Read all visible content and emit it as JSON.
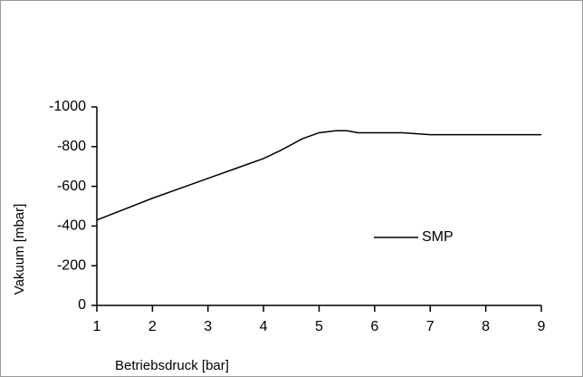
{
  "chart_data": {
    "type": "line",
    "x_label": "Betriebsdruck [bar]",
    "y_label": "Vakuum [mbar]",
    "x": [
      1,
      1.5,
      2,
      2.5,
      3,
      3.5,
      4,
      4.3,
      4.7,
      5,
      5.3,
      5.5,
      5.7,
      6,
      6.5,
      7,
      8,
      9
    ],
    "series": [
      {
        "name": "SMP",
        "color": "#000000",
        "values": [
          -430,
          -485,
          -540,
          -590,
          -640,
          -690,
          -740,
          -780,
          -840,
          -870,
          -880,
          -880,
          -870,
          -870,
          -870,
          -860,
          -860,
          -860
        ]
      }
    ],
    "xlim": [
      1,
      9
    ],
    "xticks": [
      1,
      2,
      3,
      4,
      5,
      6,
      7,
      8,
      9
    ],
    "ylim": [
      0,
      -1000
    ],
    "yticks": [
      0,
      -200,
      -400,
      -600,
      -800,
      -1000
    ],
    "grid": false,
    "legend": "center right"
  }
}
